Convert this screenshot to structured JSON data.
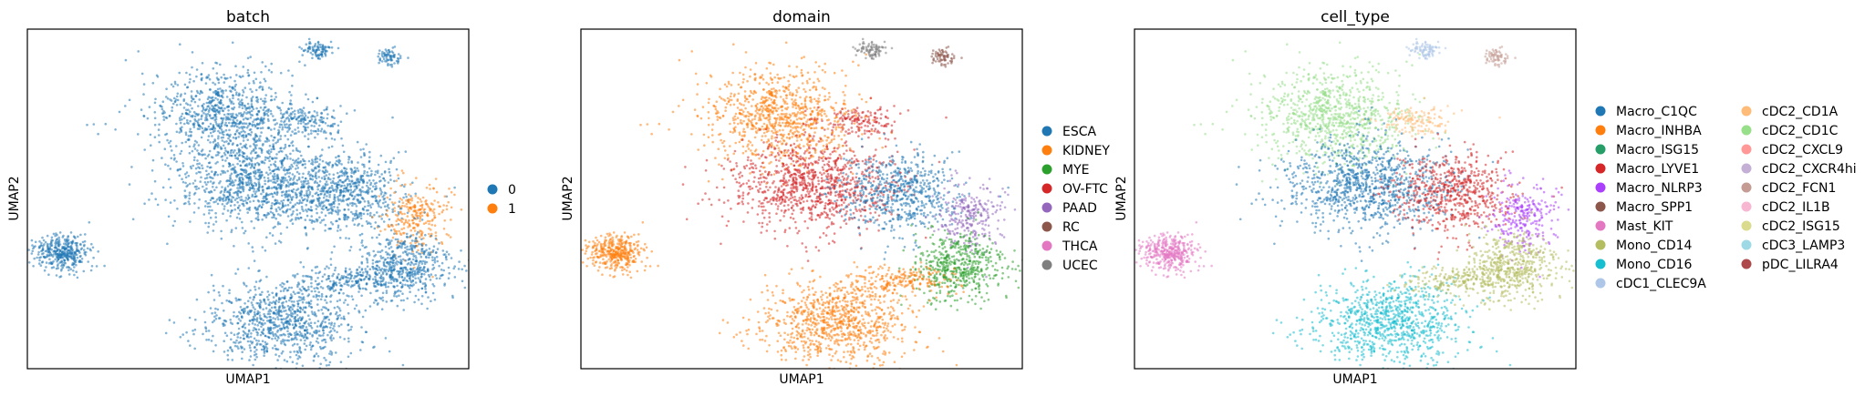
{
  "chart_data": [
    {
      "type": "scatter",
      "title": "batch",
      "xlabel": "UMAP1",
      "ylabel": "UMAP2",
      "grid": false,
      "legend_placement": "right",
      "series": [
        {
          "name": "0",
          "color": "#1f77b4"
        },
        {
          "name": "1",
          "color": "#ff7f0e"
        }
      ]
    },
    {
      "type": "scatter",
      "title": "domain",
      "xlabel": "UMAP1",
      "ylabel": "UMAP2",
      "grid": false,
      "legend_placement": "right",
      "series": [
        {
          "name": "ESCA",
          "color": "#1f77b4"
        },
        {
          "name": "KIDNEY",
          "color": "#ff7f0e"
        },
        {
          "name": "MYE",
          "color": "#2ca02c"
        },
        {
          "name": "OV-FTC",
          "color": "#d62728"
        },
        {
          "name": "PAAD",
          "color": "#9467bd"
        },
        {
          "name": "RC",
          "color": "#8c564b"
        },
        {
          "name": "THCA",
          "color": "#e377c2"
        },
        {
          "name": "UCEC",
          "color": "#7f7f7f"
        }
      ]
    },
    {
      "type": "scatter",
      "title": "cell_type",
      "xlabel": "UMAP1",
      "ylabel": "UMAP2",
      "grid": false,
      "legend_placement": "right",
      "series": [
        {
          "name": "Macro_C1QC",
          "color": "#1f77b4"
        },
        {
          "name": "Macro_INHBA",
          "color": "#ff7f0e"
        },
        {
          "name": "Macro_ISG15",
          "color": "#279e68"
        },
        {
          "name": "Macro_LYVE1",
          "color": "#d62728"
        },
        {
          "name": "Macro_NLRP3",
          "color": "#aa40fc"
        },
        {
          "name": "Macro_SPP1",
          "color": "#8c564b"
        },
        {
          "name": "Mast_KIT",
          "color": "#e377c2"
        },
        {
          "name": "Mono_CD14",
          "color": "#b5bd61"
        },
        {
          "name": "Mono_CD16",
          "color": "#17becf"
        },
        {
          "name": "cDC1_CLEC9A",
          "color": "#aec7e8"
        },
        {
          "name": "cDC2_CD1A",
          "color": "#ffbb78"
        },
        {
          "name": "cDC2_CD1C",
          "color": "#98df8a"
        },
        {
          "name": "cDC2_CXCL9",
          "color": "#ff9896"
        },
        {
          "name": "cDC2_CXCR4hi",
          "color": "#c5b0d5"
        },
        {
          "name": "cDC2_FCN1",
          "color": "#c49c94"
        },
        {
          "name": "cDC2_IL1B",
          "color": "#f7b6d2"
        },
        {
          "name": "cDC2_ISG15",
          "color": "#dbdb8d"
        },
        {
          "name": "cDC3_LAMP3",
          "color": "#9edae5"
        },
        {
          "name": "pDC_LILRA4",
          "color": "#ad494a"
        }
      ]
    }
  ]
}
